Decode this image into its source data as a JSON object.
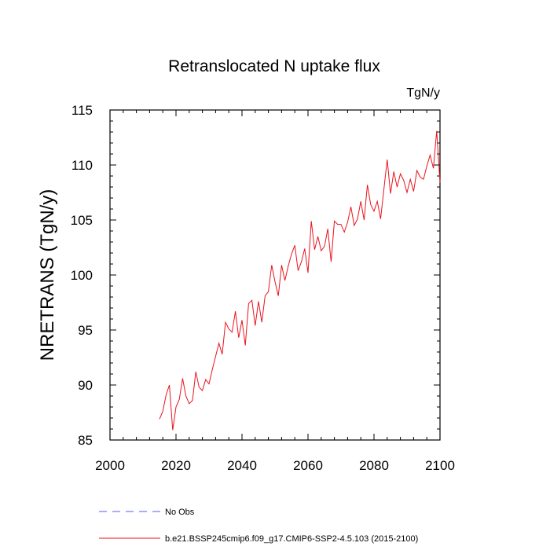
{
  "chart_data": {
    "type": "line",
    "title": "Retranslocated N uptake flux",
    "units_label": "TgN/y",
    "xlabel": "",
    "ylabel": "NRETRANS  (TgN/y)",
    "xlim": [
      2000,
      2100
    ],
    "ylim": [
      85,
      115
    ],
    "x_ticks": [
      2000,
      2020,
      2040,
      2060,
      2080,
      2100
    ],
    "y_ticks": [
      85,
      90,
      95,
      100,
      105,
      110,
      115
    ],
    "series": [
      {
        "name": "b.e21.BSSP245cmip6.f09_g17.CMIP6-SSP2-4.5.103 (2015-2100)",
        "color": "#e8141e",
        "x": [
          2015,
          2016,
          2017,
          2018,
          2019,
          2020,
          2021,
          2022,
          2023,
          2024,
          2025,
          2026,
          2027,
          2028,
          2029,
          2030,
          2031,
          2032,
          2033,
          2034,
          2035,
          2036,
          2037,
          2038,
          2039,
          2040,
          2041,
          2042,
          2043,
          2044,
          2045,
          2046,
          2047,
          2048,
          2049,
          2050,
          2051,
          2052,
          2053,
          2054,
          2055,
          2056,
          2057,
          2058,
          2059,
          2060,
          2061,
          2062,
          2063,
          2064,
          2065,
          2066,
          2067,
          2068,
          2069,
          2070,
          2071,
          2072,
          2073,
          2074,
          2075,
          2076,
          2077,
          2078,
          2079,
          2080,
          2081,
          2082,
          2083,
          2084,
          2085,
          2086,
          2087,
          2088,
          2089,
          2090,
          2091,
          2092,
          2093,
          2094,
          2095,
          2096,
          2097,
          2098,
          2099,
          2100
        ],
        "values": [
          86.9,
          87.6,
          89.1,
          90.0,
          85.9,
          88.0,
          88.7,
          90.6,
          89.0,
          88.3,
          88.6,
          91.2,
          89.8,
          89.5,
          90.5,
          90.1,
          91.4,
          92.6,
          93.8,
          92.8,
          95.7,
          95.1,
          94.8,
          96.7,
          94.3,
          95.9,
          93.6,
          97.4,
          97.7,
          95.4,
          97.6,
          95.7,
          98.1,
          98.5,
          100.9,
          99.4,
          98.1,
          100.9,
          99.5,
          100.8,
          101.9,
          102.7,
          100.4,
          101.2,
          102.4,
          100.2,
          104.9,
          102.3,
          103.5,
          102.2,
          102.6,
          104.2,
          101.2,
          104.9,
          104.6,
          104.6,
          103.9,
          104.8,
          106.2,
          104.5,
          105.1,
          106.7,
          105.0,
          108.2,
          106.4,
          105.8,
          106.7,
          105.1,
          107.8,
          110.5,
          107.4,
          109.4,
          108.0,
          109.2,
          108.6,
          107.5,
          108.7,
          107.6,
          109.5,
          108.9,
          108.7,
          109.9,
          110.9,
          109.7,
          113.1,
          108.4
        ]
      },
      {
        "name": "No Obs",
        "color": "#5a5aff",
        "x": [],
        "values": []
      }
    ],
    "legend": [
      {
        "label": "No Obs",
        "style": "dashed",
        "color": "#5a5aff"
      },
      {
        "label": "b.e21.BSSP245cmip6.f09_g17.CMIP6-SSP2-4.5.103 (2015-2100)",
        "style": "solid",
        "color": "#e8141e"
      }
    ],
    "legend_position": "bottom"
  }
}
